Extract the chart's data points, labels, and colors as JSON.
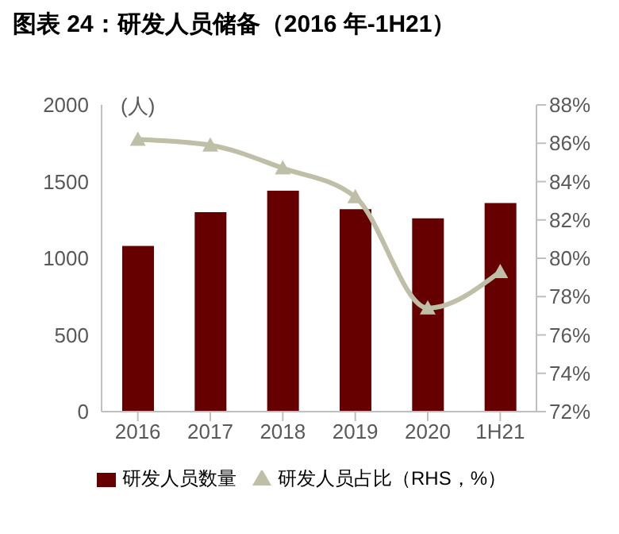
{
  "chart_data": {
    "type": "bar",
    "title": "图表 24：研发人员储备（2016 年-1H21）",
    "ylabel": "(人)",
    "categories": [
      "2016",
      "2017",
      "2018",
      "2019",
      "2020",
      "1H21"
    ],
    "series": [
      {
        "name": "研发人员数量",
        "color": "#660000",
        "values": [
          1080,
          1300,
          1440,
          1320,
          1260,
          1360
        ]
      },
      {
        "name": "研发人员占比（RHS，%）",
        "type": "line",
        "axis": "y2",
        "color": "#bfbfa8",
        "marker": "triangle",
        "values": [
          86.2,
          85.9,
          84.7,
          83.2,
          77.4,
          79.3
        ]
      }
    ],
    "ylim": [
      0,
      2000
    ],
    "yticks": [
      0,
      500,
      1000,
      1500,
      2000
    ],
    "y2lim": [
      72,
      88
    ],
    "y2ticks": [
      {
        "value": 72,
        "label": "72%"
      },
      {
        "value": 74,
        "label": "74%"
      },
      {
        "value": 76,
        "label": "76%"
      },
      {
        "value": 78,
        "label": "78%"
      },
      {
        "value": 80,
        "label": "80%"
      },
      {
        "value": 82,
        "label": "82%"
      },
      {
        "value": 84,
        "label": "84%"
      },
      {
        "value": 86,
        "label": "86%"
      },
      {
        "value": 88,
        "label": "88%"
      }
    ],
    "grid": false,
    "legend": "bottom"
  }
}
